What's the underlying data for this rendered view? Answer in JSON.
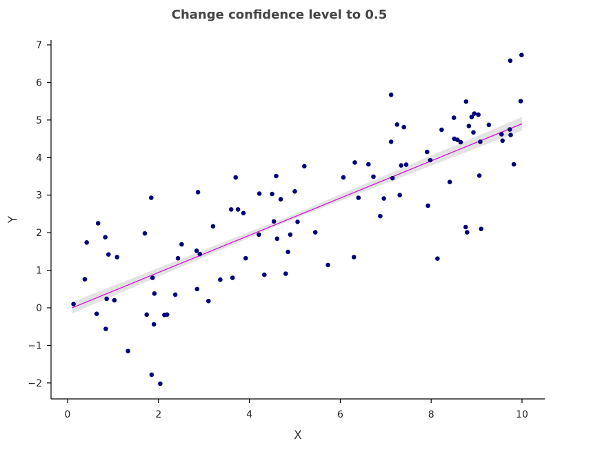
{
  "chart_data": {
    "type": "scatter",
    "title": "Change confidence level to 0.5",
    "xlabel": "X",
    "ylabel": "Y",
    "xlim": [
      -0.35,
      10.5
    ],
    "ylim": [
      -2.45,
      7.1
    ],
    "xticks": [
      0,
      2,
      4,
      6,
      8,
      10
    ],
    "yticks": [
      -2,
      -1,
      0,
      1,
      2,
      3,
      4,
      5,
      6,
      7
    ],
    "grid": false,
    "legend": "none",
    "colors": {
      "points": "#00007a",
      "fit_line": "#d81bd8",
      "confidence_band": "#dedede"
    },
    "fit": {
      "x": [
        0.1,
        10.0
      ],
      "y": [
        0.0,
        4.9
      ],
      "band": {
        "x": [
          0.1,
          5.0,
          10.0
        ],
        "lower": [
          -0.15,
          2.38,
          4.72
        ],
        "upper": [
          0.15,
          2.5,
          5.08
        ]
      }
    },
    "points": [
      [
        0.13,
        0.1
      ],
      [
        0.38,
        0.76
      ],
      [
        0.42,
        1.74
      ],
      [
        0.64,
        -0.16
      ],
      [
        0.67,
        2.25
      ],
      [
        0.83,
        1.88
      ],
      [
        0.84,
        -0.56
      ],
      [
        0.86,
        0.24
      ],
      [
        0.9,
        1.42
      ],
      [
        1.03,
        0.2
      ],
      [
        1.09,
        1.35
      ],
      [
        1.33,
        -1.15
      ],
      [
        1.7,
        1.98
      ],
      [
        1.74,
        -0.18
      ],
      [
        1.84,
        2.93
      ],
      [
        1.85,
        -1.78
      ],
      [
        1.87,
        0.8
      ],
      [
        1.9,
        -0.44
      ],
      [
        1.91,
        0.38
      ],
      [
        2.04,
        -2.02
      ],
      [
        2.13,
        -0.19
      ],
      [
        2.19,
        -0.18
      ],
      [
        2.37,
        0.35
      ],
      [
        2.43,
        1.32
      ],
      [
        2.51,
        1.69
      ],
      [
        2.84,
        1.52
      ],
      [
        2.85,
        0.5
      ],
      [
        2.87,
        3.08
      ],
      [
        2.91,
        1.43
      ],
      [
        3.1,
        0.18
      ],
      [
        3.2,
        2.17
      ],
      [
        3.36,
        0.75
      ],
      [
        3.6,
        2.62
      ],
      [
        3.63,
        0.8
      ],
      [
        3.7,
        3.47
      ],
      [
        3.75,
        2.62
      ],
      [
        3.87,
        2.52
      ],
      [
        3.92,
        1.32
      ],
      [
        4.21,
        1.95
      ],
      [
        4.22,
        3.04
      ],
      [
        4.33,
        0.88
      ],
      [
        4.5,
        3.03
      ],
      [
        4.54,
        2.3
      ],
      [
        4.59,
        3.51
      ],
      [
        4.61,
        1.84
      ],
      [
        4.69,
        2.89
      ],
      [
        4.8,
        0.91
      ],
      [
        4.85,
        1.49
      ],
      [
        4.9,
        1.95
      ],
      [
        5.0,
        3.1
      ],
      [
        5.06,
        2.29
      ],
      [
        5.21,
        3.77
      ],
      [
        5.45,
        2.01
      ],
      [
        5.73,
        1.14
      ],
      [
        6.07,
        3.47
      ],
      [
        6.3,
        1.35
      ],
      [
        6.32,
        3.87
      ],
      [
        6.4,
        2.93
      ],
      [
        6.62,
        3.82
      ],
      [
        6.73,
        3.49
      ],
      [
        6.88,
        2.44
      ],
      [
        6.96,
        2.91
      ],
      [
        7.12,
        5.67
      ],
      [
        7.12,
        4.42
      ],
      [
        7.15,
        3.45
      ],
      [
        7.25,
        4.88
      ],
      [
        7.31,
        3.0
      ],
      [
        7.34,
        3.79
      ],
      [
        7.4,
        4.81
      ],
      [
        7.45,
        3.81
      ],
      [
        7.91,
        4.15
      ],
      [
        7.93,
        2.72
      ],
      [
        7.98,
        3.93
      ],
      [
        8.14,
        1.31
      ],
      [
        8.23,
        4.74
      ],
      [
        8.41,
        3.35
      ],
      [
        8.5,
        5.06
      ],
      [
        8.51,
        4.5
      ],
      [
        8.58,
        4.47
      ],
      [
        8.65,
        4.41
      ],
      [
        8.76,
        2.15
      ],
      [
        8.77,
        5.49
      ],
      [
        8.79,
        2.01
      ],
      [
        8.83,
        4.84
      ],
      [
        8.89,
        5.08
      ],
      [
        8.93,
        4.67
      ],
      [
        8.95,
        5.17
      ],
      [
        9.04,
        5.14
      ],
      [
        9.06,
        3.52
      ],
      [
        9.08,
        4.42
      ],
      [
        9.1,
        2.1
      ],
      [
        9.27,
        4.87
      ],
      [
        9.55,
        4.62
      ],
      [
        9.57,
        4.45
      ],
      [
        9.73,
        4.75
      ],
      [
        9.74,
        6.58
      ],
      [
        9.75,
        4.6
      ],
      [
        9.82,
        3.82
      ],
      [
        9.97,
        5.5
      ],
      [
        9.99,
        6.73
      ]
    ]
  }
}
